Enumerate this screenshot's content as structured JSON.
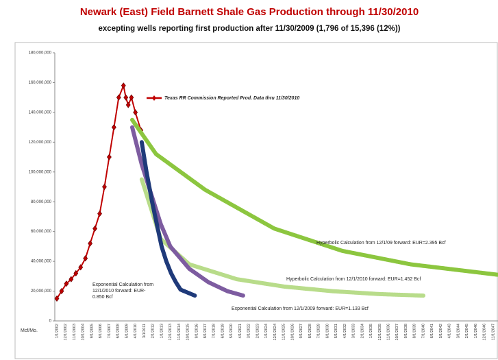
{
  "chart_data": {
    "type": "line",
    "title": "Newark (East) Field Barnett Shale Gas Production through 11/30/2010",
    "subtitle": "excepting wells reporting first production after 11/30/2009 (1,796 of 15,396 (12%))",
    "ylabel": "Mcf/Mo.",
    "ylim": [
      0,
      180000000
    ],
    "yticks": [
      0,
      {
        "value": 20000000,
        "label": "20,000,000"
      },
      {
        "value": 40000000,
        "label": "40,000,000"
      },
      {
        "value": 60000000,
        "label": "60,000,000"
      },
      {
        "value": 80000000,
        "label": "80,000,000"
      },
      {
        "value": 100000000,
        "label": "100,000,000"
      },
      {
        "value": 120000000,
        "label": "120,000,000"
      },
      {
        "value": 140000000,
        "label": "140,000,000"
      },
      {
        "value": 160000000,
        "label": "160,000,000"
      },
      {
        "value": 180000000,
        "label": "180,000,000"
      }
    ],
    "xticks": [
      "1/1/2002",
      "12/1/2002",
      "11/1/2003",
      "10/1/2004",
      "9/1/2005",
      "8/1/2006",
      "7/1/2007",
      "6/1/2008",
      "5/1/2009",
      "4/1/2010",
      "3/1/2011",
      "2/1/2012",
      "1/1/2013",
      "12/1/2013",
      "11/1/2014",
      "10/1/2015",
      "9/1/2016",
      "8/1/2017",
      "7/1/2018",
      "6/1/2019",
      "5/1/2020",
      "4/1/2021",
      "3/1/2022",
      "2/1/2023",
      "1/1/2024",
      "12/1/2024",
      "11/1/2025",
      "10/1/2026",
      "9/1/2027",
      "8/1/2028",
      "7/1/2029",
      "6/1/2030",
      "5/1/2031",
      "4/1/2032",
      "3/1/2033",
      "2/1/2034",
      "1/1/2035",
      "12/1/2035",
      "11/1/2036",
      "10/1/2037",
      "9/1/2038",
      "8/1/2039",
      "7/1/2040",
      "6/1/2041",
      "5/1/2042",
      "4/1/2043",
      "3/1/2044",
      "2/1/2045",
      "1/1/2046",
      "12/1/2046",
      "11/1/2047"
    ],
    "series": [
      {
        "name": "Texas RR Commission Reported Prod. Data thru 11/30/2010",
        "color": "#c00000",
        "marker": "diamond",
        "x": [
          "1/1/2002",
          "7/1/2002",
          "1/1/2003",
          "7/1/2003",
          "1/1/2004",
          "7/1/2004",
          "1/1/2005",
          "7/1/2005",
          "1/1/2006",
          "7/1/2006",
          "1/1/2007",
          "7/1/2007",
          "1/1/2008",
          "7/1/2008",
          "1/1/2009",
          "4/1/2009",
          "7/1/2009",
          "11/1/2009",
          "4/1/2010",
          "11/1/2010"
        ],
        "values": [
          15000000,
          20000000,
          25000000,
          28000000,
          32000000,
          36000000,
          42000000,
          52000000,
          62000000,
          72000000,
          90000000,
          110000000,
          130000000,
          150000000,
          158000000,
          150000000,
          145000000,
          150000000,
          140000000,
          128000000
        ]
      },
      {
        "color": "#8cc63f",
        "x": [
          "12/1/2009",
          "6/1/2012",
          "8/1/2017",
          "11/1/2024",
          "1/1/2032",
          "3/1/2039",
          "5/1/2048"
        ],
        "values": [
          135000000,
          112000000,
          88000000,
          62000000,
          47000000,
          38000000,
          31000000
        ]
      },
      {
        "color": "#b8dc8a",
        "x": [
          "12/1/2010",
          "12/1/2012",
          "12/1/2015",
          "12/1/2020",
          "12/1/2025",
          "12/1/2030",
          "12/1/2035",
          "7/1/2040"
        ],
        "values": [
          95000000,
          55000000,
          38000000,
          28000000,
          23000000,
          20000000,
          18000000,
          17000000
        ]
      },
      {
        "color": "#7d5ca0",
        "x": [
          "12/1/2009",
          "12/1/2010",
          "12/1/2011",
          "12/1/2012",
          "12/1/2013",
          "12/1/2015",
          "12/1/2017",
          "12/1/2019",
          "8/1/2021"
        ],
        "values": [
          130000000,
          105000000,
          85000000,
          65000000,
          50000000,
          35000000,
          26000000,
          20000000,
          17000000
        ]
      },
      {
        "color": "#1f3a7a",
        "x": [
          "12/1/2010",
          "6/1/2011",
          "1/1/2012",
          "7/1/2012",
          "1/1/2013",
          "7/1/2013",
          "1/1/2014",
          "7/1/2014",
          "1/1/2015",
          "7/1/2016"
        ],
        "values": [
          120000000,
          100000000,
          80000000,
          65000000,
          50000000,
          40000000,
          32000000,
          26000000,
          21000000,
          17000000
        ]
      }
    ],
    "annotations": [
      [
        "Hyperbolic Calculation from 12/1/09 forward: EUR=2.395 Bcf"
      ],
      [
        "Hyperbolic Calculation from 12/1/2010 forward: EUR=1.452 Bcf"
      ],
      [
        "Exponential Calculation from 12/1/2009 forward: EUR=1.133 Bcf"
      ],
      [
        "Exponential Calculation from",
        "12/1/2010 forward: EUR-",
        "0.850 Bcf"
      ]
    ]
  }
}
